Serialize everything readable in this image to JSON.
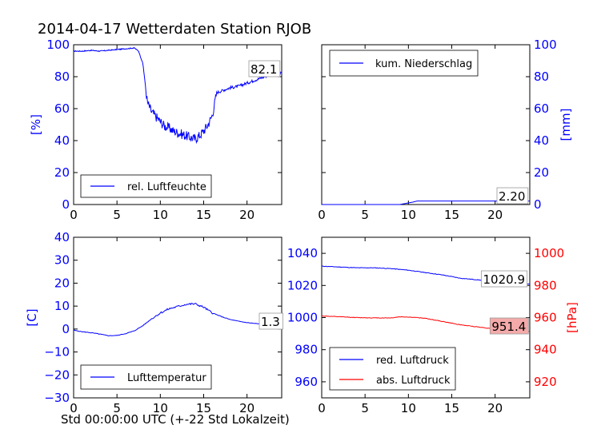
{
  "title": "2014-04-17 Wetterdaten Station RJOB",
  "xlabel": "Std 00:00:00 UTC (+-22 Std Lokalzeit)",
  "colors": {
    "primary": "#0000ff",
    "secondary": "#ff0000",
    "axis": "#000000",
    "value_box_secondary": "#f4aaaa"
  },
  "chart_data": [
    {
      "type": "line",
      "ylabel": "[%]",
      "ylim": [
        0,
        100
      ],
      "xlim": [
        0,
        24
      ],
      "xticks": [
        0,
        5,
        10,
        15,
        20
      ],
      "yticks": [
        0,
        20,
        40,
        60,
        80,
        100
      ],
      "y_axis_side": "left",
      "legend": "bottom-left",
      "value_label": "82.1",
      "series": [
        {
          "name": "rel. Luftfeuchte",
          "color": "#0000ff",
          "x": [
            0,
            1,
            2,
            3,
            4,
            5,
            6,
            7,
            7.5,
            8,
            8.5,
            9,
            9.5,
            10,
            10.5,
            11,
            11.5,
            12,
            12.5,
            13,
            13.5,
            14,
            14.5,
            15,
            15.5,
            16,
            16.5,
            17,
            18,
            19,
            20,
            21,
            22,
            23,
            24
          ],
          "values": [
            96,
            96,
            96.5,
            96,
            96.5,
            97,
            97.5,
            98,
            96,
            88,
            64,
            58,
            55,
            52,
            49,
            48,
            46,
            45,
            44,
            43,
            42,
            41,
            43,
            46,
            50,
            56,
            70,
            71,
            73,
            74,
            76,
            78,
            80,
            82,
            82.1
          ]
        }
      ]
    },
    {
      "type": "line",
      "ylabel": "[mm]",
      "ylim": [
        0,
        100
      ],
      "xlim": [
        0,
        24
      ],
      "xticks": [
        0,
        5,
        10,
        15,
        20
      ],
      "yticks": [
        0,
        20,
        40,
        60,
        80,
        100
      ],
      "y_axis_side": "right",
      "legend": "top-left",
      "value_label": "2.20",
      "series": [
        {
          "name": "kum. Niederschlag",
          "color": "#0000ff",
          "x": [
            0,
            9,
            10.5,
            11,
            24
          ],
          "values": [
            0,
            0,
            1.5,
            2.2,
            2.2
          ]
        }
      ]
    },
    {
      "type": "line",
      "ylabel": "[C]",
      "ylim": [
        -30,
        40
      ],
      "xlim": [
        0,
        24
      ],
      "xticks": [
        0,
        5,
        10,
        15,
        20
      ],
      "yticks": [
        -30,
        -20,
        -10,
        0,
        10,
        20,
        30,
        40
      ],
      "y_axis_side": "left",
      "legend": "bottom-left",
      "value_label": "1.3",
      "series": [
        {
          "name": "Lufttemperatur",
          "color": "#0000ff",
          "x": [
            0,
            1,
            2,
            3,
            4,
            5,
            6,
            7,
            8,
            9,
            10,
            11,
            12,
            13,
            14,
            15,
            16,
            17,
            18,
            19,
            20,
            21,
            22,
            23,
            24
          ],
          "values": [
            -0.5,
            -1.2,
            -1.6,
            -2.2,
            -2.9,
            -2.8,
            -2.0,
            -0.8,
            1.5,
            4.5,
            7.0,
            8.8,
            9.8,
            10.8,
            11.0,
            9.5,
            7.0,
            5.5,
            4.2,
            3.4,
            2.8,
            2.4,
            2.0,
            1.6,
            1.3
          ]
        }
      ]
    },
    {
      "type": "line",
      "ylabel": "[hPa]",
      "ylim": [
        950,
        1050
      ],
      "xlim": [
        0,
        24
      ],
      "xticks": [
        0,
        5,
        10,
        15,
        20
      ],
      "yticks": [
        960,
        980,
        1000,
        1020,
        1040
      ],
      "secondary_ylim": [
        910,
        1010
      ],
      "secondary_yticks": [
        920,
        940,
        960,
        980,
        1000
      ],
      "legend": "bottom-left",
      "value_labels": [
        "1020.9",
        "951.4"
      ],
      "series": [
        {
          "name": "red. Luftdruck",
          "color": "#0000ff",
          "axis": "left",
          "x": [
            0,
            2,
            4,
            6,
            8,
            10,
            12,
            14,
            16,
            18,
            20,
            22,
            24
          ],
          "values": [
            1032,
            1031.5,
            1031,
            1031,
            1030.5,
            1029.5,
            1028,
            1026.5,
            1024.5,
            1023.5,
            1022.5,
            1021.5,
            1020.9
          ]
        },
        {
          "name": "abs. Luftdruck",
          "color": "#ff0000",
          "axis": "right",
          "x": [
            0,
            2,
            4,
            6,
            8,
            9,
            10,
            11,
            12,
            13,
            14,
            15,
            16,
            17,
            18,
            19,
            20,
            21,
            22,
            23,
            24
          ],
          "values": [
            961,
            960.5,
            960,
            959.8,
            959.8,
            960.5,
            960.3,
            960,
            959.5,
            958.5,
            957.5,
            956.5,
            955.5,
            954.8,
            954.2,
            953.5,
            953,
            952.5,
            952,
            951.8,
            951.4
          ]
        }
      ]
    }
  ]
}
